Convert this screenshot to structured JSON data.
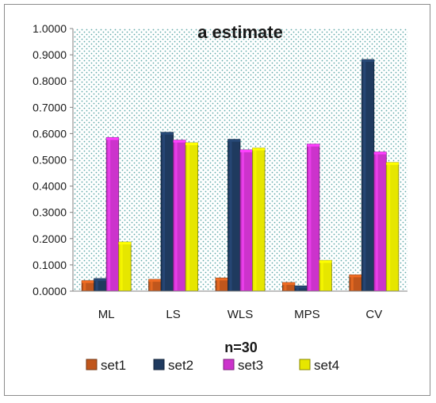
{
  "chart_data": {
    "type": "bar",
    "title": "a estimate",
    "xlabel": "n=30",
    "ylabel": "",
    "ylim": [
      0,
      1
    ],
    "y_ticks": [
      "0.0000",
      "0.1000",
      "0.2000",
      "0.3000",
      "0.4000",
      "0.5000",
      "0.6000",
      "0.7000",
      "0.8000",
      "0.9000",
      "1.0000"
    ],
    "categories": [
      "ML",
      "LS",
      "WLS",
      "MPS",
      "CV"
    ],
    "series": [
      {
        "name": "set1",
        "color": "#c0561c",
        "values": [
          0.04,
          0.045,
          0.05,
          0.033,
          0.062
        ]
      },
      {
        "name": "set2",
        "color": "#1f3a5f",
        "values": [
          0.048,
          0.605,
          0.578,
          0.02,
          0.882
        ]
      },
      {
        "name": "set3",
        "color": "#cc33cc",
        "values": [
          0.585,
          0.575,
          0.538,
          0.56,
          0.53
        ]
      },
      {
        "name": "set4",
        "color": "#e6e600",
        "values": [
          0.187,
          0.565,
          0.545,
          0.117,
          0.49
        ]
      }
    ],
    "grid": false,
    "legend_position": "bottom"
  }
}
